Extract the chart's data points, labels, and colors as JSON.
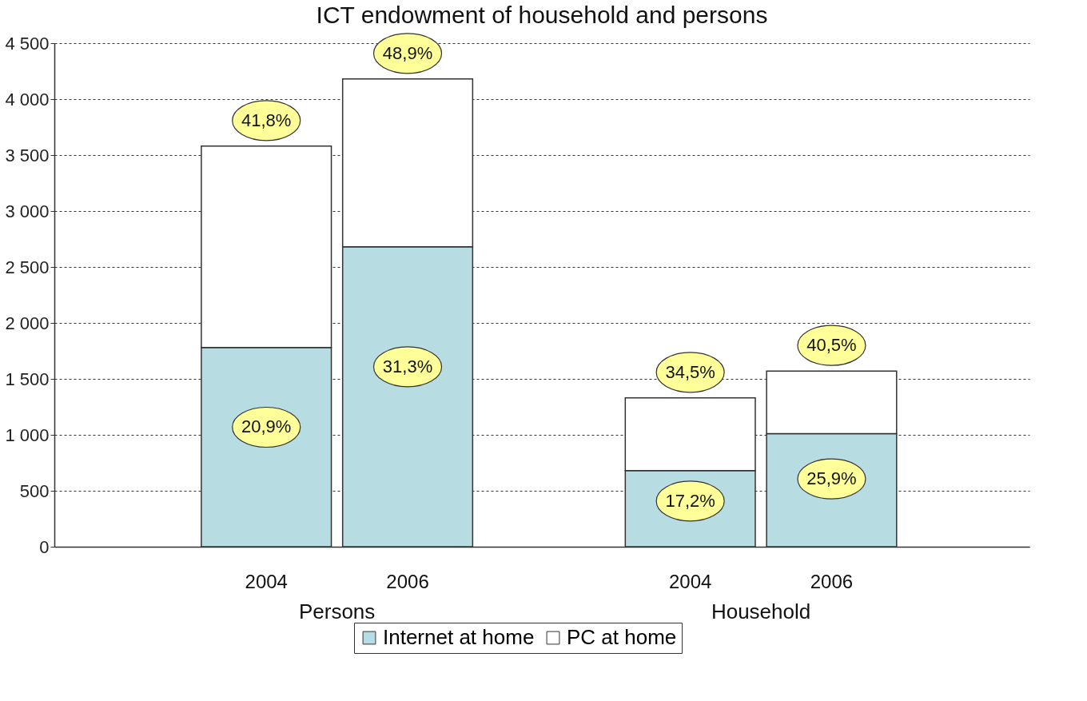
{
  "chart_data": {
    "type": "bar",
    "title": "ICT endowment of household and persons",
    "categories": [
      "2004",
      "2006",
      "2004",
      "2006"
    ],
    "stacked": true,
    "series": [
      {
        "name": "Internet at home",
        "color": "#b7dde3",
        "values": [
          1780,
          2680,
          680,
          1010
        ]
      },
      {
        "name": "PC at home",
        "color": "#ffffff",
        "values": [
          1800,
          1500,
          650,
          560
        ]
      }
    ],
    "ylim": [
      0,
      4500
    ],
    "yticks": [
      0,
      500,
      {
        "value": 1000,
        "label": "1 000"
      },
      {
        "value": 1500,
        "label": "1 500"
      },
      {
        "value": 2000,
        "label": "2 000"
      },
      {
        "value": 2500,
        "label": "2 500"
      },
      {
        "value": 3000,
        "label": "3 000"
      },
      {
        "value": 3500,
        "label": "3 500"
      },
      {
        "value": 4000,
        "label": "4 000"
      },
      {
        "value": 4500,
        "label": "4 500"
      }
    ],
    "grid": "y",
    "legend": "bottom",
    "annotations": [
      "Persons",
      "Household",
      "20,9%",
      "31,3%",
      "17,2%",
      "25,9%",
      "41,8%",
      "48,9%",
      "34,5%",
      "40,5%"
    ]
  }
}
